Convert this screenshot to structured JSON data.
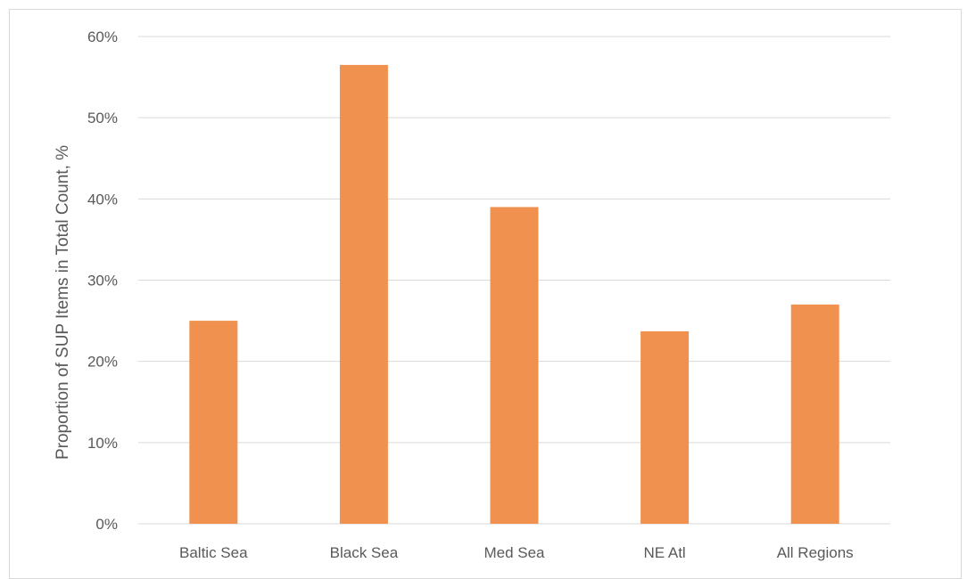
{
  "chart_data": {
    "type": "bar",
    "title": "",
    "xlabel": "",
    "ylabel": "Proportion of SUP Items in Total Count, %",
    "categories": [
      "Baltic Sea",
      "Black Sea",
      "Med Sea",
      "NE Atl",
      "All Regions"
    ],
    "values": [
      25,
      56.5,
      39,
      23.7,
      27
    ],
    "ylim": [
      0,
      60
    ],
    "yticks": [
      0,
      10,
      20,
      30,
      40,
      50,
      60
    ],
    "ytick_labels": [
      "0%",
      "10%",
      "20%",
      "30%",
      "40%",
      "50%",
      "60%"
    ],
    "grid": true,
    "legend": "none",
    "bar_color": "#f0914f",
    "grid_color": "#d9d9d9",
    "text_color": "#595959"
  }
}
